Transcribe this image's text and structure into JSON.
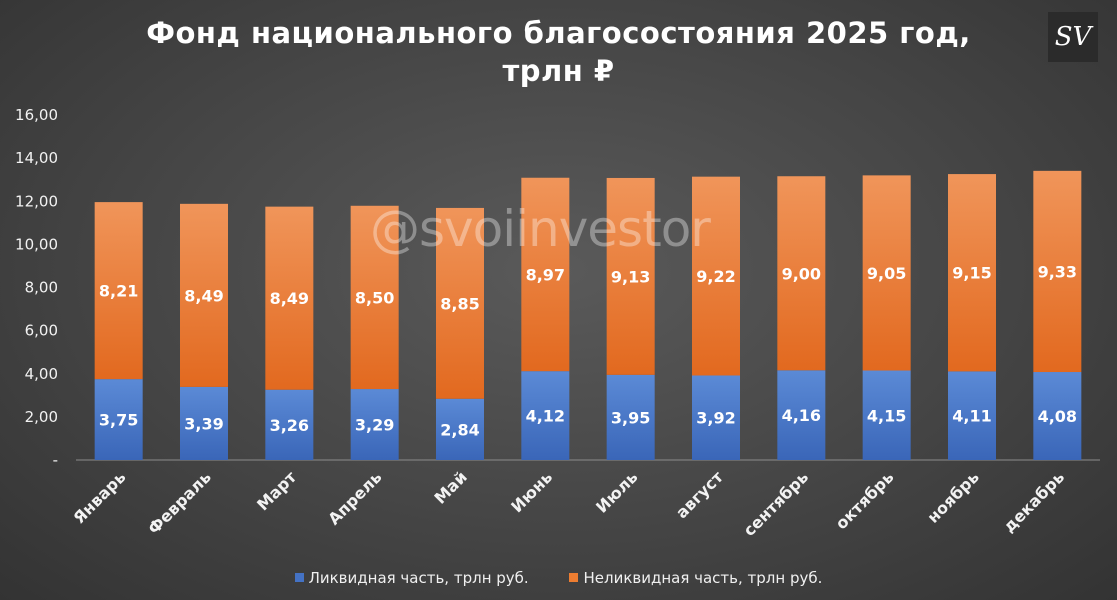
{
  "title_line1": "Фонд национального благосостояния 2025 год,",
  "title_line2": "трлн ₽",
  "logo_text": "SV",
  "watermark": "@svoiinvestor",
  "chart_data": {
    "type": "bar",
    "stacked": true,
    "title": "Фонд национального благосостояния 2025 год, трлн ₽",
    "categories": [
      "Январь",
      "Февраль",
      "Март",
      "Апрель",
      "Май",
      "Июнь",
      "Июль",
      "август",
      "сентябрь",
      "октябрь",
      "ноябрь",
      "декабрь"
    ],
    "series": [
      {
        "name": "Ликвидная часть, трлн руб.",
        "color": "#4472C4",
        "values": [
          3.75,
          3.39,
          3.26,
          3.29,
          2.84,
          4.12,
          3.95,
          3.92,
          4.16,
          4.15,
          4.11,
          4.08
        ],
        "labels": [
          "3,75",
          "3,39",
          "3,26",
          "3,29",
          "2,84",
          "4,12",
          "3,95",
          "3,92",
          "4,16",
          "4,15",
          "4,11",
          "4,08"
        ]
      },
      {
        "name": "Неликвидная часть, трлн руб.",
        "color": "#ED7D31",
        "values": [
          8.21,
          8.49,
          8.49,
          8.5,
          8.85,
          8.97,
          9.13,
          9.22,
          9.0,
          9.05,
          9.15,
          9.33
        ],
        "labels": [
          "8,21",
          "8,49",
          "8,49",
          "8,50",
          "8,85",
          "8,97",
          "9,13",
          "9,22",
          "9,00",
          "9,05",
          "9,15",
          "9,33"
        ]
      }
    ],
    "ylim": [
      0,
      16
    ],
    "yticks": [
      "-",
      "2,00",
      "4,00",
      "6,00",
      "8,00",
      "10,00",
      "12,00",
      "14,00",
      "16,00"
    ],
    "grid": false,
    "legend_position": "bottom"
  }
}
